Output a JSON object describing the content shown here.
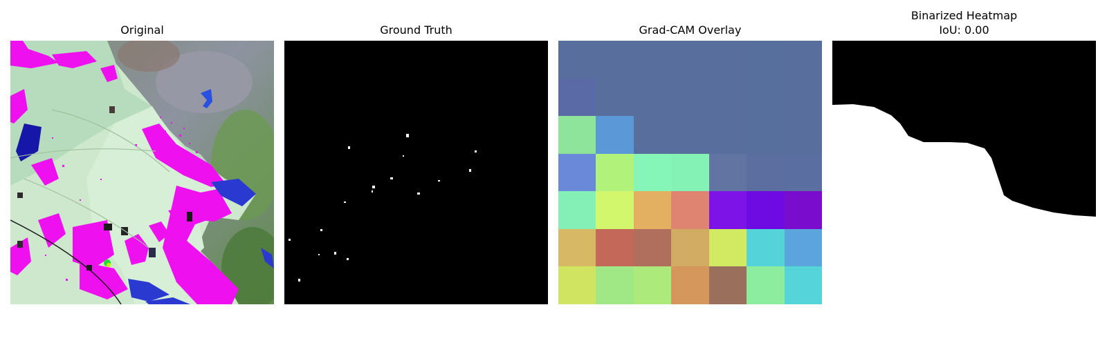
{
  "panels": {
    "original": {
      "title": "Original"
    },
    "ground_truth": {
      "title": "Ground Truth"
    },
    "gradcam": {
      "title": "Grad-CAM Overlay",
      "grid": [
        [
          "#586e9c",
          "#586e9c",
          "#586e9c",
          "#586e9c",
          "#586e9c",
          "#576f9c",
          "#586e9c"
        ],
        [
          "#5a6aa6",
          "#586e9c",
          "#586e9c",
          "#586e9c",
          "#586e9c",
          "#576f9c",
          "#586e9c"
        ],
        [
          "#8ee49a",
          "#5b98d8",
          "#586e9c",
          "#586e9c",
          "#586e9c",
          "#576f9c",
          "#586e9c"
        ],
        [
          "#6a8ad9",
          "#b0f27a",
          "#86f5b8",
          "#85f2b5",
          "#6275a2",
          "#5c6ea0",
          "#5b6ea2"
        ],
        [
          "#85f0b5",
          "#d2f76d",
          "#e3b062",
          "#df8470",
          "#7d13e7",
          "#6e0ae2",
          "#7a0cce"
        ],
        [
          "#d7b864",
          "#c4695a",
          "#b06e5c",
          "#d2ac62",
          "#d1ea61",
          "#54d4d8",
          "#5ba4de"
        ],
        [
          "#d0e462",
          "#a0e886",
          "#acea7c",
          "#d5975c",
          "#9a705c",
          "#8ded9f",
          "#55d4da"
        ]
      ]
    },
    "binarized": {
      "title": "Binarized Heatmap",
      "subtitle": "IoU: 0.00"
    }
  }
}
